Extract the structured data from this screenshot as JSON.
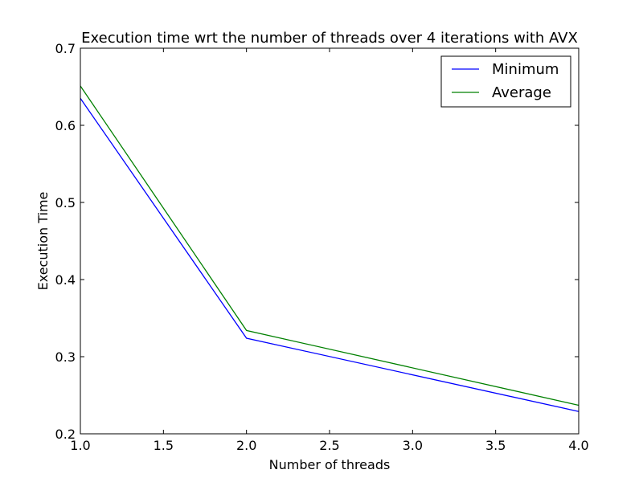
{
  "chart_data": {
    "type": "line",
    "title": "Execution time wrt the number of threads over 4 iterations with AVX",
    "xlabel": "Number of threads",
    "ylabel": "Execution Time",
    "xlim": [
      1.0,
      4.0
    ],
    "ylim": [
      0.2,
      0.7
    ],
    "xticks": [
      "1.0",
      "1.5",
      "2.0",
      "2.5",
      "3.0",
      "3.5",
      "4.0"
    ],
    "yticks": [
      "0.2",
      "0.3",
      "0.4",
      "0.5",
      "0.6",
      "0.7"
    ],
    "grid": false,
    "legend_position": "top-right",
    "x": [
      1,
      2,
      4
    ],
    "series": [
      {
        "name": "Minimum",
        "color": "#0000ff",
        "values": [
          0.635,
          0.324,
          0.229
        ]
      },
      {
        "name": "Average",
        "color": "#008000",
        "values": [
          0.651,
          0.334,
          0.237
        ]
      }
    ]
  }
}
